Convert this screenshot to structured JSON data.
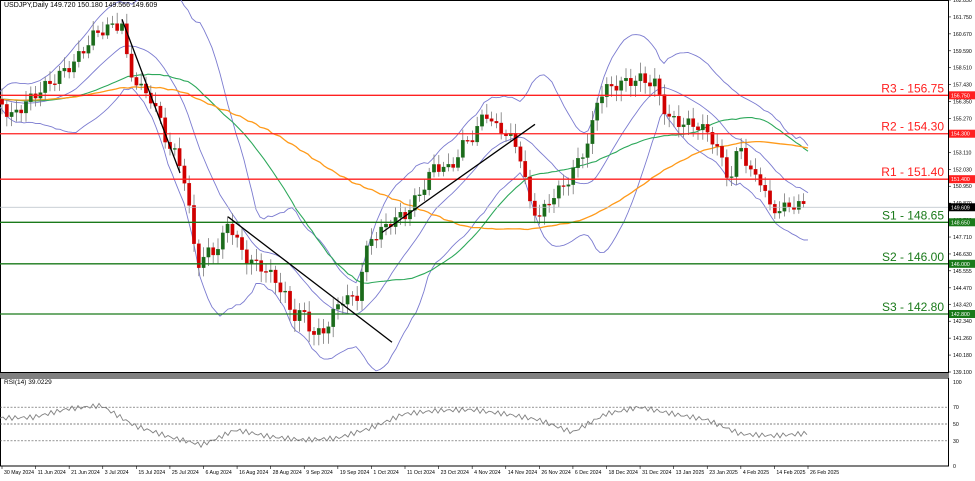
{
  "header": {
    "symbol_line": "USDJPY,Daily  149.720 150.180 149.566 149.609"
  },
  "rsi_panel": {
    "title": "RSI(14) 39.0229"
  },
  "colors": {
    "resistance": "#ff2020",
    "support": "#1a7a1a",
    "bull_candle": "#1b6b1b",
    "bear_candle": "#d00000",
    "bollinger": "#7b7bd0",
    "ma_fast": "#2ca85a",
    "ma_slow": "#ff9a1a",
    "current_price_bg": "#000000",
    "rsi_line": "#808080"
  },
  "chart_data": [
    {
      "type": "candlestick",
      "title": "USDJPY,Daily",
      "ohlc_last": {
        "open": 149.72,
        "high": 150.18,
        "low": 149.566,
        "close": 149.609
      },
      "xlabel": "",
      "ylabel": "",
      "ylim": [
        139.1,
        162.8
      ],
      "y_ticks": [
        "162.830",
        "161.750",
        "160.670",
        "159.590",
        "158.510",
        "157.430",
        "156.350",
        "155.270",
        "154.190",
        "153.110",
        "152.030",
        "150.950",
        "149.870",
        "148.790",
        "147.710",
        "146.630",
        "145.555",
        "144.470",
        "143.420",
        "142.340",
        "141.260",
        "140.180",
        "139.100"
      ],
      "x_ticks": [
        "30 May 2024",
        "11 Jun 2024",
        "21 Jun 2024",
        "3 Jul 2024",
        "15 Jul 2024",
        "25 Jul 2024",
        "6 Aug 2024",
        "16 Aug 2024",
        "28 Aug 2024",
        "9 Sep 2024",
        "19 Sep 2024",
        "1 Oct 2024",
        "11 Oct 2024",
        "23 Oct 2024",
        "4 Nov 2024",
        "14 Nov 2024",
        "26 Nov 2024",
        "6 Dec 2024",
        "18 Dec 2024",
        "31 Dec 2024",
        "13 Jan 2025",
        "23 Jan 2025",
        "4 Feb 2025",
        "14 Feb 2025",
        "26 Feb 2025"
      ],
      "horizontal_levels": [
        {
          "label": "R3 - 156.75",
          "value": 156.75,
          "kind": "resistance",
          "tag": "156.750"
        },
        {
          "label": "R2 - 154.30",
          "value": 154.3,
          "kind": "resistance",
          "tag": "154.300"
        },
        {
          "label": "R1 - 151.40",
          "value": 151.4,
          "kind": "resistance",
          "tag": "151.400"
        },
        {
          "label": "S1 - 148.65",
          "value": 148.65,
          "kind": "support",
          "tag": "148.650"
        },
        {
          "label": "S2 - 146.00",
          "value": 146.0,
          "kind": "support",
          "tag": "146.000"
        },
        {
          "label": "S3 - 142.80",
          "value": 142.8,
          "kind": "support",
          "tag": "142.800"
        }
      ],
      "current_price_tag": "149.609",
      "trendlines": [
        {
          "name": "downtrend-jul",
          "from": [
            "3 Jul 2024",
            161.6
          ],
          "to": [
            "28 Jul 2024",
            151.8
          ]
        },
        {
          "name": "downtrend-aug-sep",
          "from": [
            "16 Aug 2024",
            149.0
          ],
          "to": [
            "3 Oct 2024",
            141.0
          ]
        },
        {
          "name": "uptrend-oct-nov",
          "from": [
            "14 Oct 2024",
            148.0
          ],
          "to": [
            "20 Nov 2024",
            154.9
          ]
        }
      ],
      "overlays": [
        "Bollinger Bands (upper/middle/lower)",
        "Moving average (green)",
        "Moving average (orange)"
      ],
      "legend": []
    },
    {
      "type": "line",
      "title": "RSI(14) 39.0229",
      "ylim": [
        0,
        100
      ],
      "y_ticks": [
        "100",
        "70",
        "50",
        "30",
        "0"
      ],
      "reference_lines": [
        70,
        50,
        30
      ],
      "series": [
        {
          "name": "RSI(14)",
          "x": [
            "30 May 2024",
            "11 Jun 2024",
            "21 Jun 2024",
            "3 Jul 2024",
            "15 Jul 2024",
            "25 Jul 2024",
            "6 Aug 2024",
            "16 Aug 2024",
            "28 Aug 2024",
            "9 Sep 2024",
            "19 Sep 2024",
            "1 Oct 2024",
            "11 Oct 2024",
            "23 Oct 2024",
            "4 Nov 2024",
            "14 Nov 2024",
            "26 Nov 2024",
            "6 Dec 2024",
            "18 Dec 2024",
            "31 Dec 2024",
            "13 Jan 2025",
            "23 Jan 2025",
            "4 Feb 2025",
            "14 Feb 2025",
            "26 Feb 2025"
          ],
          "values": [
            57,
            58,
            68,
            72,
            48,
            35,
            25,
            43,
            35,
            31,
            33,
            45,
            62,
            66,
            67,
            62,
            55,
            40,
            62,
            70,
            62,
            55,
            38,
            36,
            39
          ]
        }
      ]
    }
  ]
}
